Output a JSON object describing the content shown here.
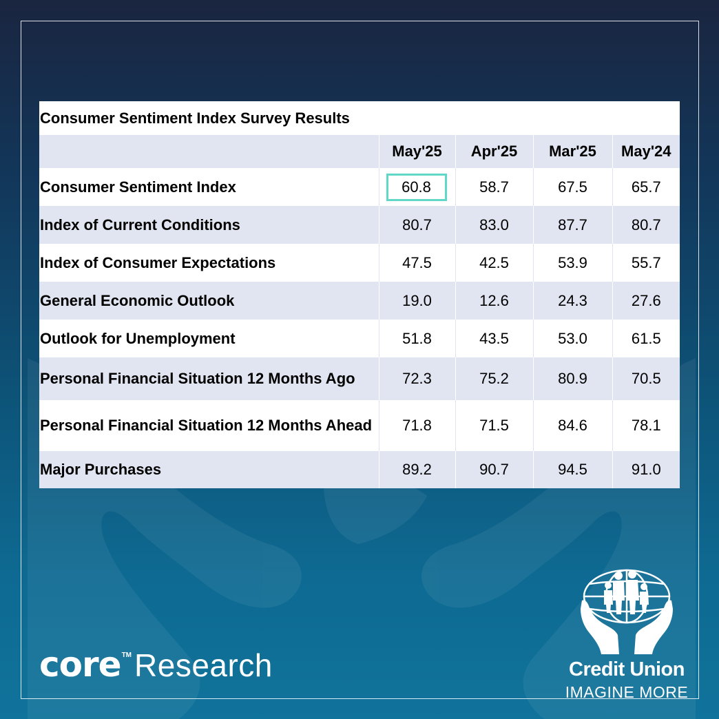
{
  "table": {
    "title": "Consumer Sentiment Index Survey Results",
    "columns": [
      "May'25",
      "Apr'25",
      "Mar'25",
      "May'24"
    ],
    "rows": [
      {
        "label": "Consumer Sentiment Index",
        "values": [
          "60.8",
          "58.7",
          "67.5",
          "65.7"
        ]
      },
      {
        "label": "Index of Current Conditions",
        "values": [
          "80.7",
          "83.0",
          "87.7",
          "80.7"
        ]
      },
      {
        "label": "Index of Consumer Expectations",
        "values": [
          "47.5",
          "42.5",
          "53.9",
          "55.7"
        ]
      },
      {
        "label": "General Economic Outlook",
        "values": [
          "19.0",
          "12.6",
          "24.3",
          "27.6"
        ]
      },
      {
        "label": "Outlook for Unemployment",
        "values": [
          "51.8",
          "43.5",
          "53.0",
          "61.5"
        ]
      },
      {
        "label": "Personal Financial Situation 12 Months Ago",
        "values": [
          "72.3",
          "75.2",
          "80.9",
          "70.5"
        ]
      },
      {
        "label": "Personal Financial Situation 12 Months Ahead",
        "values": [
          "71.8",
          "71.5",
          "84.6",
          "78.1"
        ]
      },
      {
        "label": "Major Purchases",
        "values": [
          "89.2",
          "90.7",
          "94.5",
          "91.0"
        ]
      }
    ]
  },
  "branding": {
    "core_word": "core",
    "core_tm": "TM",
    "core_suffix": "Research",
    "cu_name": "Credit Union",
    "cu_tagline": "IMAGINE MORE"
  },
  "colors": {
    "highlight": "#5fd8c8",
    "row_shade": "#e1e4f1",
    "bg_top": "#1a2540",
    "bg_bottom": "#10739b"
  },
  "icons": {
    "background": "hands-silhouette-icon",
    "emblem": "credit-union-globe-family-hands-icon"
  }
}
